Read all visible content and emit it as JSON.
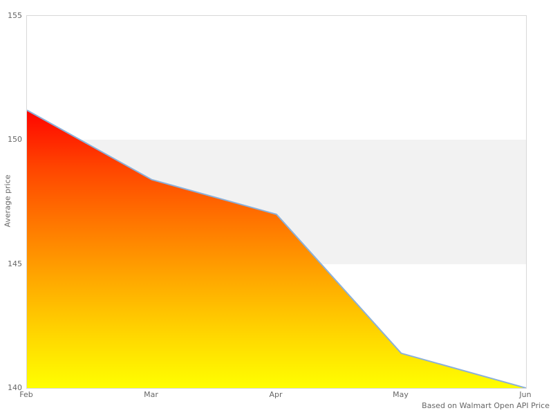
{
  "chart_data": {
    "type": "area",
    "title": "",
    "xlabel": "",
    "ylabel": "Average price",
    "x": [
      "Feb",
      "Mar",
      "Apr",
      "May",
      "Jun"
    ],
    "series": [
      {
        "name": "Average price",
        "values": [
          151.2,
          148.4,
          147.0,
          141.4,
          140.0
        ]
      }
    ],
    "ylim": [
      140,
      155
    ],
    "yticks": [
      155,
      150,
      145,
      140
    ],
    "grid": false,
    "legend": "none",
    "plot_band": {
      "from": 145,
      "to": 150,
      "color": "#f2f2f2"
    },
    "line_color": "#8bb0d9",
    "fill_gradient": [
      {
        "offset": 0,
        "color": "#ff0400"
      },
      {
        "offset": 0.2,
        "color": "#ff4300"
      },
      {
        "offset": 0.38,
        "color": "#ff7000"
      },
      {
        "offset": 0.6,
        "color": "#ffa600"
      },
      {
        "offset": 0.82,
        "color": "#ffd900"
      },
      {
        "offset": 1,
        "color": "#ffff00"
      }
    ],
    "credits": "Based on Walmart Open API Price",
    "text_color": "#666666"
  }
}
